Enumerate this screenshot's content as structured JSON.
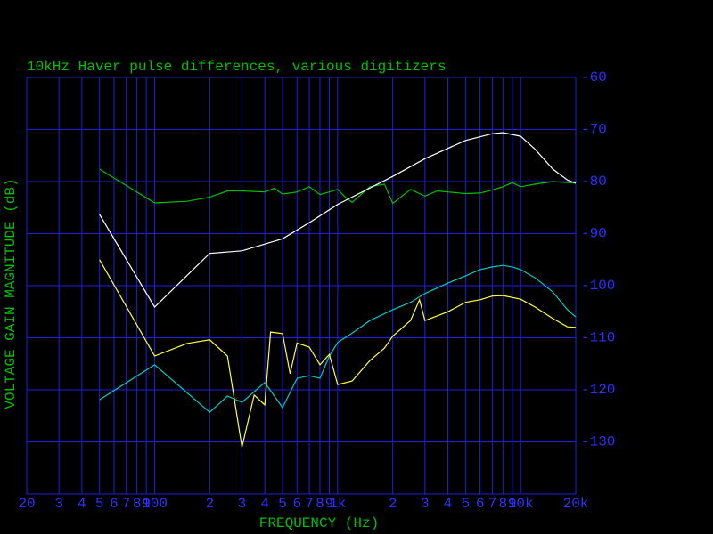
{
  "chart_data": {
    "type": "line",
    "title": "10kHz Haver pulse differences, various digitizers",
    "x_label": "FREQUENCY (Hz)",
    "y_label": "VOLTAGE GAIN MAGNITUDE (dB)",
    "x_scale": "log",
    "grid": true,
    "xlim": [
      20,
      20000
    ],
    "ylim": [
      -140,
      -60
    ],
    "xticks": [
      20,
      {
        "value": 30,
        "label": "3"
      },
      {
        "value": 40,
        "label": "4"
      },
      {
        "value": 50,
        "label": "5"
      },
      {
        "value": 60,
        "label": "6"
      },
      {
        "value": 70,
        "label": "7"
      },
      {
        "value": 80,
        "label": "8"
      },
      {
        "value": 90,
        "label": "9"
      },
      100,
      {
        "value": 200,
        "label": "2"
      },
      {
        "value": 300,
        "label": "3"
      },
      {
        "value": 400,
        "label": "4"
      },
      {
        "value": 500,
        "label": "5"
      },
      {
        "value": 600,
        "label": "6"
      },
      {
        "value": 700,
        "label": "7"
      },
      {
        "value": 800,
        "label": "8"
      },
      {
        "value": 900,
        "label": "9"
      },
      {
        "value": 1000,
        "label": "1k"
      },
      {
        "value": 2000,
        "label": "2"
      },
      {
        "value": 3000,
        "label": "3"
      },
      {
        "value": 4000,
        "label": "4"
      },
      {
        "value": 5000,
        "label": "5"
      },
      {
        "value": 6000,
        "label": "6"
      },
      {
        "value": 7000,
        "label": "7"
      },
      {
        "value": 8000,
        "label": "8"
      },
      {
        "value": 9000,
        "label": "9"
      },
      {
        "value": 10000,
        "label": "10k"
      },
      {
        "value": 20000,
        "label": "20k"
      }
    ],
    "yticks": [
      -60,
      -70,
      -80,
      -90,
      -100,
      -110,
      -120,
      -130
    ],
    "series": [
      {
        "color": "#00c000",
        "x": [
          50,
          100,
          150,
          200,
          250,
          300,
          400,
          450,
          500,
          600,
          700,
          800,
          900,
          1000,
          1100,
          1200,
          1500,
          1800,
          2000,
          2500,
          3000,
          3500,
          4000,
          5000,
          6000,
          7000,
          8000,
          9000,
          10000,
          12000,
          15000,
          20000
        ],
        "values": [
          -77.6,
          -84.1,
          -83.8,
          -83,
          -81.8,
          -81.8,
          -82,
          -81.3,
          -82.4,
          -82,
          -81,
          -82.5,
          -82,
          -81.5,
          -83,
          -84,
          -81,
          -80.5,
          -84.2,
          -81.5,
          -82.8,
          -81.8,
          -82,
          -82.3,
          -82.2,
          -81.6,
          -81,
          -80.2,
          -81,
          -80.5,
          -80,
          -80.3
        ]
      },
      {
        "color": "#ffffff",
        "x": [
          50,
          100,
          200,
          300,
          500,
          700,
          1000,
          2000,
          3000,
          5000,
          7000,
          8000,
          10000,
          12000,
          15000,
          18000,
          20000
        ],
        "values": [
          -86.3,
          -104.1,
          -93.8,
          -93.3,
          -91,
          -87.9,
          -84.4,
          -79,
          -75.6,
          -72.1,
          -70.8,
          -70.6,
          -71.3,
          -73.8,
          -77.6,
          -79.7,
          -80.3
        ]
      },
      {
        "color": "#00c8c8",
        "x": [
          50,
          100,
          200,
          250,
          300,
          400,
          500,
          600,
          700,
          800,
          900,
          1000,
          1200,
          1500,
          2000,
          2500,
          3000,
          4000,
          5000,
          6000,
          7000,
          8000,
          9000,
          10000,
          12000,
          15000,
          18000,
          20000
        ],
        "values": [
          -121.9,
          -115.2,
          -124.3,
          -121.2,
          -122.4,
          -118.6,
          -123.4,
          -117.8,
          -117.3,
          -117.8,
          -113.5,
          -110.9,
          -109.1,
          -106.7,
          -104.6,
          -103.2,
          -101.5,
          -99.5,
          -98.1,
          -96.9,
          -96.4,
          -96.1,
          -96.4,
          -96.9,
          -98.5,
          -101.2,
          -104.6,
          -106
        ]
      },
      {
        "color": "#ffff40",
        "x": [
          50,
          100,
          150,
          200,
          250,
          300,
          350,
          400,
          430,
          500,
          550,
          600,
          700,
          800,
          900,
          1000,
          1200,
          1500,
          1800,
          2000,
          2500,
          2800,
          3000,
          4000,
          5000,
          6000,
          7000,
          8000,
          10000,
          12000,
          15000,
          18000,
          20000
        ],
        "values": [
          -95,
          -113.5,
          -111.1,
          -110.4,
          -113.5,
          -131,
          -121,
          -122.9,
          -108.9,
          -109.2,
          -116.9,
          -111,
          -111.8,
          -115.2,
          -113.2,
          -119,
          -118.3,
          -114.4,
          -112,
          -109.7,
          -106.7,
          -102.7,
          -106.7,
          -105,
          -103.2,
          -102.7,
          -102,
          -101.9,
          -102.6,
          -104.1,
          -106.3,
          -107.9,
          -108
        ]
      }
    ]
  }
}
